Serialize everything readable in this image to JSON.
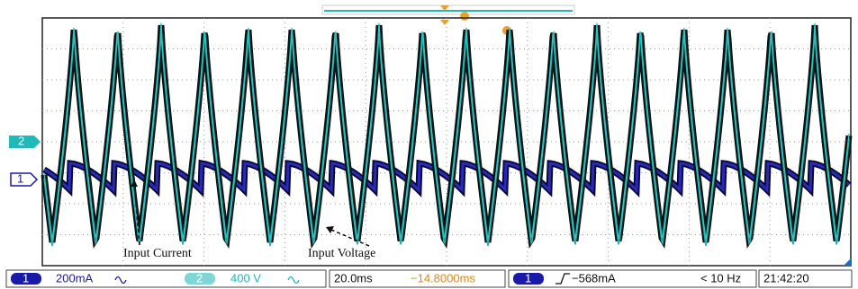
{
  "channel_markers": [
    "2",
    "1"
  ],
  "annotations": [
    "Input Current",
    "Input Voltage"
  ],
  "status": {
    "ch1": {
      "label": "1",
      "scale": "200mA"
    },
    "ch2": {
      "label": "2",
      "scale": "400 V"
    },
    "timebase": "20.0ms",
    "delay": "−14.8000ms",
    "trigger": {
      "channel": "1",
      "level": "−568mA",
      "frequency": "< 10 Hz"
    },
    "clock": "21:42:20"
  }
}
